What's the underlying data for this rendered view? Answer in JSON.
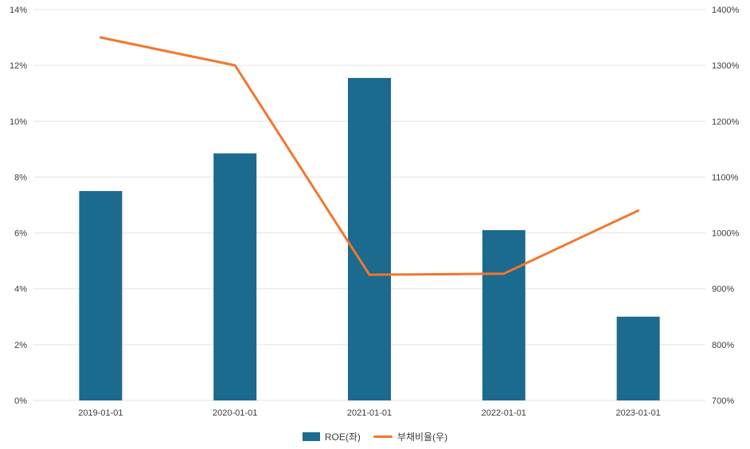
{
  "chart_data": {
    "type": "combo",
    "categories": [
      "2019-01-01",
      "2020-01-01",
      "2021-01-01",
      "2022-01-01",
      "2023-01-01"
    ],
    "series": [
      {
        "name": "ROE(좌)",
        "type": "bar",
        "axis": "left",
        "color": "#1c6a8d",
        "values": [
          7.5,
          8.85,
          11.55,
          6.1,
          3.0
        ]
      },
      {
        "name": "부채비율(우)",
        "type": "line",
        "axis": "right",
        "color": "#f2762e",
        "values": [
          1350,
          1300,
          925,
          927,
          1040
        ]
      }
    ],
    "left_axis": {
      "min": 0,
      "max": 14,
      "step": 2,
      "suffix": "%"
    },
    "right_axis": {
      "min": 700,
      "max": 1400,
      "step": 100,
      "suffix": "%"
    },
    "grid": true,
    "legend_position": "bottom",
    "title": ""
  },
  "colors": {
    "background": "#ffffff",
    "grid": "#e3e3e3",
    "axis_text": "#3c3c3c",
    "bar": "#1c6a8d",
    "line": "#f2762e"
  }
}
